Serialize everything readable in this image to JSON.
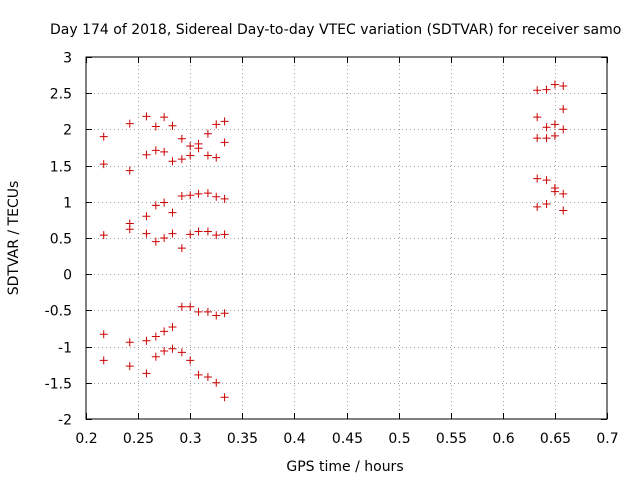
{
  "chart_data": {
    "type": "scatter",
    "title": "Day 174 of 2018, Sidereal Day-to-day VTEC variation (SDTVAR) for receiver samo",
    "xlabel": "GPS time / hours",
    "ylabel": "SDTVAR / TECUs",
    "xlim": [
      0.2,
      0.7
    ],
    "ylim": [
      -2,
      3
    ],
    "xticks": [
      0.2,
      0.25,
      0.3,
      0.35,
      0.4,
      0.45,
      0.5,
      0.55,
      0.6,
      0.65,
      0.7
    ],
    "xtick_labels": [
      "0.2",
      "0.25",
      "0.3",
      "0.35",
      "0.4",
      "0.45",
      "0.5",
      "0.55",
      "0.6",
      "0.65",
      "0.7"
    ],
    "yticks": [
      -2,
      -1.5,
      -1,
      -0.5,
      0,
      0.5,
      1,
      1.5,
      2,
      2.5,
      3
    ],
    "ytick_labels": [
      "-2",
      "-1.5",
      "-1",
      "-0.5",
      "0",
      "0.5",
      "1",
      "1.5",
      "2",
      "2.5",
      "3"
    ],
    "grid": true,
    "marker": "+",
    "marker_color": "#cc0000",
    "series": [
      {
        "name": "SDTVAR",
        "points": [
          [
            0.217,
            1.9
          ],
          [
            0.217,
            1.52
          ],
          [
            0.217,
            0.54
          ],
          [
            0.217,
            -0.83
          ],
          [
            0.217,
            -1.19
          ],
          [
            0.242,
            2.08
          ],
          [
            0.242,
            1.43
          ],
          [
            0.242,
            0.7
          ],
          [
            0.242,
            0.62
          ],
          [
            0.242,
            -0.94
          ],
          [
            0.242,
            -1.27
          ],
          [
            0.258,
            2.18
          ],
          [
            0.258,
            1.65
          ],
          [
            0.258,
            0.8
          ],
          [
            0.258,
            0.56
          ],
          [
            0.258,
            -0.92
          ],
          [
            0.258,
            -1.37
          ],
          [
            0.267,
            2.04
          ],
          [
            0.267,
            1.71
          ],
          [
            0.267,
            0.95
          ],
          [
            0.267,
            0.45
          ],
          [
            0.267,
            -0.86
          ],
          [
            0.267,
            -1.14
          ],
          [
            0.275,
            2.17
          ],
          [
            0.275,
            1.69
          ],
          [
            0.275,
            0.99
          ],
          [
            0.275,
            0.5
          ],
          [
            0.275,
            -0.79
          ],
          [
            0.275,
            -1.06
          ],
          [
            0.283,
            2.05
          ],
          [
            0.283,
            1.56
          ],
          [
            0.283,
            0.85
          ],
          [
            0.283,
            0.56
          ],
          [
            0.283,
            -0.73
          ],
          [
            0.283,
            -1.03
          ],
          [
            0.292,
            1.87
          ],
          [
            0.292,
            1.59
          ],
          [
            0.292,
            1.08
          ],
          [
            0.292,
            0.36
          ],
          [
            0.292,
            -0.45
          ],
          [
            0.292,
            -1.08
          ],
          [
            0.3,
            1.77
          ],
          [
            0.3,
            1.64
          ],
          [
            0.3,
            1.09
          ],
          [
            0.3,
            0.55
          ],
          [
            0.3,
            -0.45
          ],
          [
            0.3,
            -1.19
          ],
          [
            0.308,
            1.8
          ],
          [
            0.308,
            1.74
          ],
          [
            0.308,
            1.11
          ],
          [
            0.308,
            0.59
          ],
          [
            0.308,
            -0.52
          ],
          [
            0.308,
            -1.39
          ],
          [
            0.317,
            1.94
          ],
          [
            0.317,
            1.64
          ],
          [
            0.317,
            1.12
          ],
          [
            0.317,
            0.59
          ],
          [
            0.317,
            -0.52
          ],
          [
            0.317,
            -1.42
          ],
          [
            0.325,
            2.07
          ],
          [
            0.325,
            1.61
          ],
          [
            0.325,
            1.07
          ],
          [
            0.325,
            0.54
          ],
          [
            0.325,
            -0.57
          ],
          [
            0.325,
            -1.5
          ],
          [
            0.333,
            2.11
          ],
          [
            0.333,
            1.82
          ],
          [
            0.333,
            1.04
          ],
          [
            0.333,
            0.55
          ],
          [
            0.333,
            -0.54
          ],
          [
            0.333,
            -1.7
          ],
          [
            0.633,
            2.54
          ],
          [
            0.633,
            2.17
          ],
          [
            0.633,
            1.88
          ],
          [
            0.633,
            1.32
          ],
          [
            0.633,
            0.93
          ],
          [
            0.642,
            2.55
          ],
          [
            0.642,
            2.03
          ],
          [
            0.642,
            1.88
          ],
          [
            0.642,
            1.3
          ],
          [
            0.642,
            0.97
          ],
          [
            0.65,
            2.62
          ],
          [
            0.65,
            2.07
          ],
          [
            0.65,
            1.91
          ],
          [
            0.65,
            1.19
          ],
          [
            0.65,
            1.14
          ],
          [
            0.658,
            2.6
          ],
          [
            0.658,
            2.28
          ],
          [
            0.658,
            2.0
          ],
          [
            0.658,
            1.11
          ],
          [
            0.658,
            0.88
          ]
        ]
      }
    ]
  }
}
